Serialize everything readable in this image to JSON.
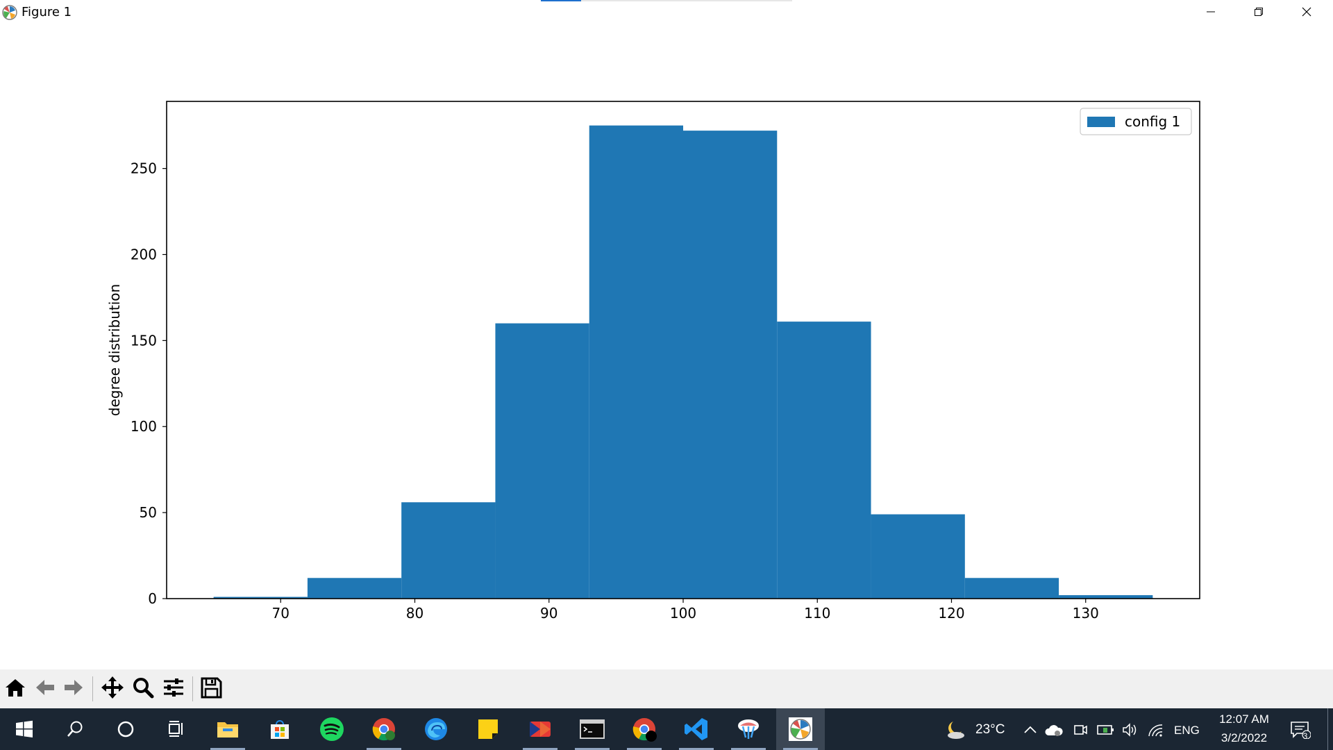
{
  "window": {
    "title": "Figure 1",
    "app_icon": "matplotlib-icon",
    "title_progress": 0.16,
    "controls": [
      "minimize-icon",
      "restore-icon",
      "close-icon"
    ]
  },
  "chart_data": {
    "type": "bar",
    "title": "",
    "xlabel": "",
    "ylabel": "degree distribution",
    "color": "#1f77b4",
    "bin_edges": [
      65,
      72,
      79,
      86,
      93,
      100,
      107,
      114,
      121,
      128,
      135
    ],
    "values": [
      1,
      12,
      56,
      160,
      275,
      272,
      161,
      49,
      12,
      2
    ],
    "xlim": [
      61.5,
      138.5
    ],
    "ylim": [
      0,
      289
    ],
    "xticks": [
      70,
      80,
      90,
      100,
      110,
      120,
      130
    ],
    "yticks": [
      0,
      50,
      100,
      150,
      200,
      250
    ],
    "xtick_labels": [
      "70",
      "80",
      "90",
      "100",
      "110",
      "120",
      "130"
    ],
    "ytick_labels": [
      "0",
      "50",
      "100",
      "150",
      "200",
      "250"
    ],
    "legend": {
      "entries": [
        "config 1"
      ],
      "placement": "top-right"
    },
    "grid": false
  },
  "toolbar": {
    "buttons": [
      "home-icon",
      "back-arrow-icon",
      "forward-arrow-icon",
      "pan-icon",
      "zoom-icon",
      "configure-subplots-icon",
      "save-icon"
    ]
  },
  "taskbar": {
    "apps": [
      "windows-start-icon",
      "search-icon",
      "cortana-icon",
      "task-view-icon",
      "file-explorer-icon",
      "microsoft-store-icon",
      "spotify-icon",
      "chrome-icon",
      "edge-icon",
      "sticky-notes-icon",
      "app-red-icon",
      "terminal-icon",
      "chrome-profile-icon",
      "vscode-icon",
      "python-icon",
      "matplotlib-window-icon"
    ],
    "weather": {
      "icon": "moon-cloud-icon",
      "temperature": "23°C"
    },
    "language": "ENG",
    "time": "12:07 AM",
    "date": "3/2/2022",
    "notification_count": "3"
  }
}
